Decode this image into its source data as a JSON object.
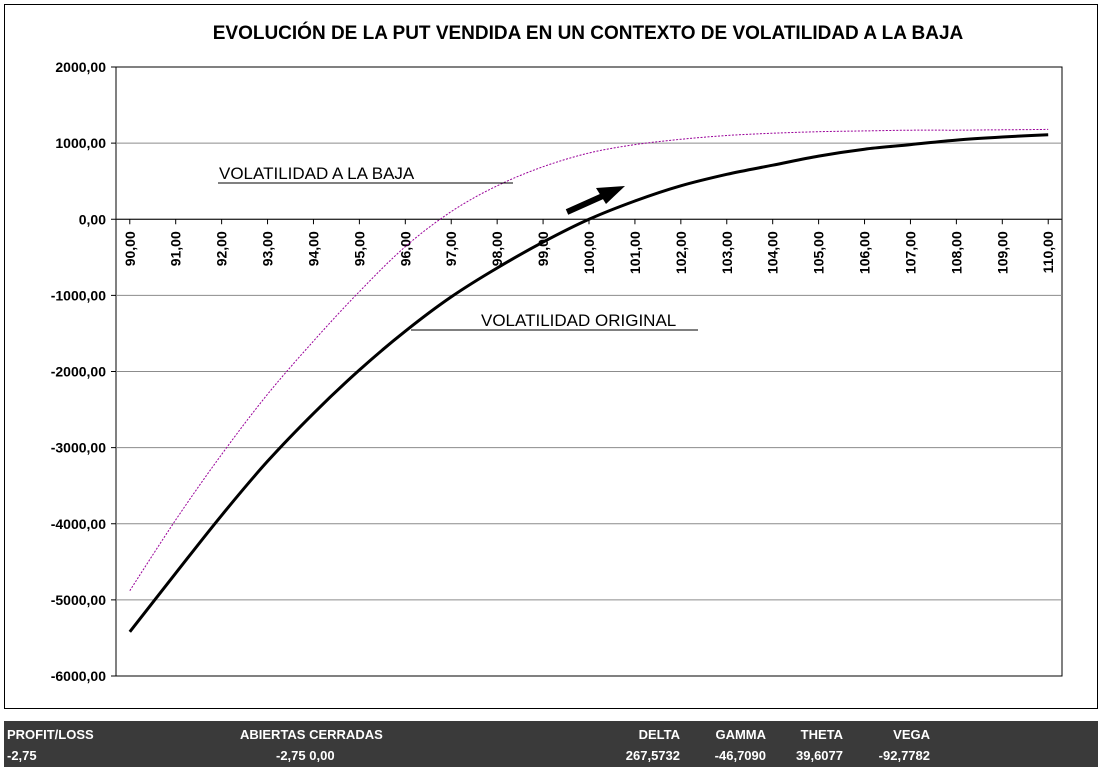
{
  "chart_data": {
    "type": "line",
    "title": "EVOLUCIÓN DE LA PUT VENDIDA EN UN CONTEXTO DE VOLATILIDAD A LA BAJA",
    "x_tick_labels": [
      "90,00",
      "91,00",
      "92,00",
      "93,00",
      "94,00",
      "95,00",
      "96,00",
      "97,00",
      "98,00",
      "99,00",
      "100,00",
      "101,00",
      "102,00",
      "103,00",
      "104,00",
      "105,00",
      "106,00",
      "107,00",
      "108,00",
      "109,00",
      "110,00"
    ],
    "y_tick_labels": [
      "2000,00",
      "1000,00",
      "0,00",
      "-1000,00",
      "-2000,00",
      "-3000,00",
      "-4000,00",
      "-5000,00",
      "-6000,00"
    ],
    "ylim": [
      -6000,
      2000
    ],
    "xlim": [
      89.7,
      110.3
    ],
    "grid": "horizontal",
    "legend": "none",
    "x": [
      90,
      91,
      92,
      93,
      94,
      95,
      96,
      97,
      98,
      99,
      100,
      101,
      102,
      103,
      104,
      105,
      106,
      107,
      108,
      109,
      110
    ],
    "series": [
      {
        "name": "VOLATILIDAD ORIGINAL",
        "color": "#000000",
        "values": [
          -5420,
          -4650,
          -3890,
          -3180,
          -2550,
          -1980,
          -1470,
          -1020,
          -640,
          -300,
          0,
          240,
          440,
          590,
          710,
          830,
          920,
          980,
          1040,
          1080,
          1110
        ]
      },
      {
        "name": "VOLATILIDAD A LA BAJA",
        "color": "#990099",
        "values": [
          -4880,
          -3950,
          -3090,
          -2300,
          -1600,
          -950,
          -360,
          100,
          440,
          690,
          870,
          980,
          1050,
          1100,
          1130,
          1150,
          1160,
          1170,
          1170,
          1175,
          1180
        ]
      }
    ],
    "annotations": {
      "low_vol_label": "VOLATILIDAD A LA BAJA",
      "orig_vol_label": "VOLATILIDAD ORIGINAL"
    }
  },
  "status_bar": {
    "profit_loss_label": "PROFIT/LOSS",
    "profit_loss_value": "-2,75",
    "abiertas_cerradas_label": "ABIERTAS CERRADAS",
    "abiertas_cerradas_value": "-2,75 0,00",
    "delta_label": "DELTA",
    "delta_value": "267,5732",
    "gamma_label": "GAMMA",
    "gamma_value": "-46,7090",
    "theta_label": "THETA",
    "theta_value": "39,6077",
    "vega_label": "VEGA",
    "vega_value": "-92,7782"
  }
}
